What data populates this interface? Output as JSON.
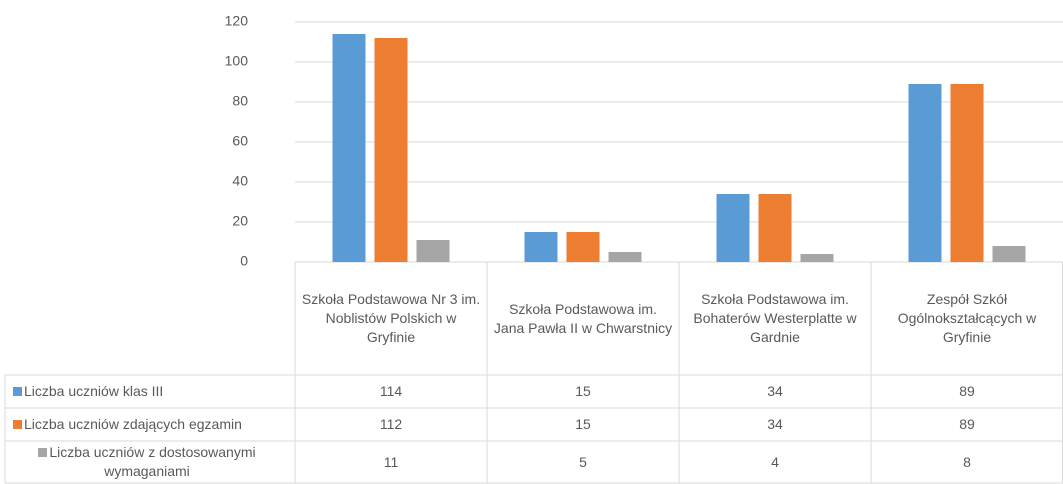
{
  "chart_data": {
    "type": "bar",
    "categories": [
      "Szkoła Podstawowa Nr 3 im. Noblistów Polskich w Gryfinie",
      "Szkoła Podstawowa im. Jana Pawła II w Chwarstnicy",
      "Szkoła Podstawowa im. Bohaterów Westerplatte w Gardnie",
      "Zespół Szkół Ogólnokształcących w Gryfinie"
    ],
    "series": [
      {
        "name": "Liczba uczniów klas III",
        "color": "#5b9bd5",
        "values": [
          114,
          15,
          34,
          89
        ]
      },
      {
        "name": "Liczba uczniów zdających egzamin",
        "color": "#ed7d31",
        "values": [
          112,
          15,
          34,
          89
        ]
      },
      {
        "name": "Liczba uczniów z dostosowanymi wymaganiami",
        "color": "#a5a5a5",
        "values": [
          11,
          5,
          4,
          8
        ]
      }
    ],
    "ylim": [
      0,
      120
    ],
    "yticks": [
      0,
      20,
      40,
      60,
      80,
      100,
      120
    ],
    "grid": true,
    "data_table": true
  }
}
